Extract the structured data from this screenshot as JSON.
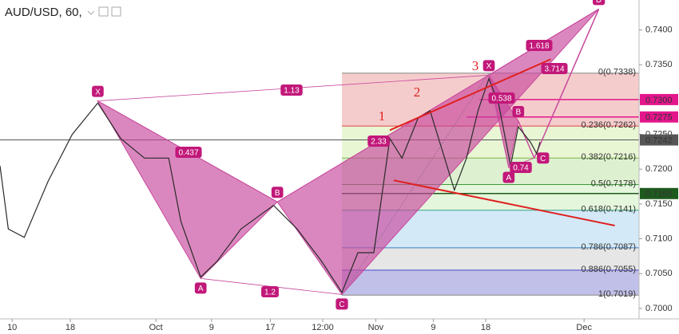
{
  "header": {
    "symbol": "AUD/USD, 60,"
  },
  "chart_data": {
    "type": "line",
    "color": "#2a2a2a",
    "x": [
      0,
      1.3,
      3.8,
      7.5,
      11.3,
      15.3,
      18.9,
      22.6,
      26.4,
      28.3,
      31.4,
      34,
      37.7,
      42.8,
      46.5,
      50.3,
      53.5,
      56,
      58.5,
      61,
      62.9,
      65.4,
      67.3,
      69.2,
      71.1,
      73,
      74.8,
      76.5,
      78,
      79.9,
      81.1,
      83,
      84,
      84.5
    ],
    "values": [
      0.7205,
      0.7114,
      0.7102,
      0.7182,
      0.725,
      0.7295,
      0.7244,
      0.7216,
      0.7216,
      0.7125,
      0.7045,
      0.7068,
      0.7114,
      0.7148,
      0.7114,
      0.7068,
      0.7023,
      0.708,
      0.708,
      0.7244,
      0.7216,
      0.7273,
      0.7284,
      0.7227,
      0.717,
      0.7216,
      0.7284,
      0.733,
      0.7295,
      0.7205,
      0.7261,
      0.7239,
      0.7222,
      0.7239
    ],
    "xlim": [
      0,
      100
    ],
    "xticks": [
      {
        "value": 1.9,
        "label": "10"
      },
      {
        "value": 11,
        "label": "18"
      },
      {
        "value": 24.4,
        "label": "Oct"
      },
      {
        "value": 33.1,
        "label": "9"
      },
      {
        "value": 42.3,
        "label": "17"
      },
      {
        "value": 50.5,
        "label": "12:00"
      },
      {
        "value": 58.8,
        "label": "Nov"
      },
      {
        "value": 67.8,
        "label": "9"
      },
      {
        "value": 76,
        "label": "18"
      },
      {
        "value": 91.4,
        "label": "Dec"
      }
    ],
    "ylim": [
      0.6985,
      0.7443
    ],
    "yticks": [
      {
        "value": 0.74,
        "label": "0.7400"
      },
      {
        "value": 0.735,
        "label": "0.7350"
      },
      {
        "value": 0.73,
        "label": "0.7300"
      },
      {
        "value": 0.725,
        "label": "0.7250"
      },
      {
        "value": 0.72,
        "label": "0.7200"
      },
      {
        "value": 0.715,
        "label": "0.7150"
      },
      {
        "value": 0.71,
        "label": "0.7100"
      },
      {
        "value": 0.705,
        "label": "0.7050"
      },
      {
        "value": 0.7,
        "label": "0.7000"
      }
    ],
    "price_tags": [
      {
        "value": 0.73,
        "label": "0.7300",
        "color": "#e3168c",
        "from": 75
      },
      {
        "value": 0.7275,
        "label": "0.7275",
        "color": "#e3168c",
        "from": 73
      },
      {
        "value": 0.7242,
        "label": "0.7242",
        "color": "#555555",
        "from": 0
      },
      {
        "value": 0.7165,
        "label": "0.7165",
        "color": "#1e5a1e",
        "from": 53.5
      }
    ],
    "fib_start": 53.5,
    "fib_levels": [
      {
        "value": 0.7338,
        "label": "0(0.7338)",
        "color": "#888888",
        "fill": "rgba(225,110,110,0.35)"
      },
      {
        "value": 0.7262,
        "label": "0.236(0.7262)",
        "color": "#e04040",
        "fill": "rgba(205,235,160,0.45)"
      },
      {
        "value": 0.7216,
        "label": "0.382(0.7216)",
        "color": "#7ab648",
        "fill": "rgba(180,225,150,0.45)"
      },
      {
        "value": 0.7178,
        "label": "0.5(0.7178)",
        "color": "#3c9a3c",
        "fill": "rgba(195,235,175,0.45)"
      },
      {
        "value": 0.7141,
        "label": "0.618(0.7141)",
        "color": "#3aa38c",
        "fill": "rgba(175,215,240,0.55)"
      },
      {
        "value": 0.7087,
        "label": "0.786(0.7087)",
        "color": "#3d7fc0",
        "fill": "rgba(210,210,210,0.55)"
      },
      {
        "value": 0.7055,
        "label": "0.886(0.7055)",
        "color": "#4a4ac8",
        "fill": "rgba(140,140,215,0.55)"
      },
      {
        "value": 0.7019,
        "label": "1(0.7019)",
        "color": "#888888"
      }
    ],
    "patterns": [
      {
        "color": "#c8479c",
        "points": [
          {
            "label": "X",
            "x": 15.3,
            "y": 0.7298
          },
          {
            "label": "A",
            "x": 31.4,
            "y": 0.7043
          },
          {
            "label": "B",
            "x": 43.4,
            "y": 0.7153
          },
          {
            "label": "C",
            "x": 53.5,
            "y": 0.702
          },
          {
            "label": "D",
            "x": 93.7,
            "y": 0.743
          }
        ]
      },
      {
        "color": "#c8479c",
        "points": [
          {
            "label": "X",
            "x": 76.5,
            "y": 0.7335
          },
          {
            "label": "A",
            "x": 79.6,
            "y": 0.7202
          },
          {
            "label": "B",
            "x": 81.1,
            "y": 0.7269
          },
          {
            "label": "C",
            "x": 83.6,
            "y": 0.7216
          }
        ]
      }
    ],
    "ratios": [
      0.437,
      1.2,
      1.13,
      1.618,
      3.714,
      2.33,
      0.538,
      0.74
    ],
    "trend_lines": [
      {
        "color": "#e02020",
        "x": [
          61,
          86.2
        ],
        "y": [
          0.7256,
          0.7358
        ]
      },
      {
        "color": "#e02020",
        "x": [
          61.6,
          96.2
        ],
        "y": [
          0.7184,
          0.7119
        ]
      }
    ],
    "waves": [
      "1",
      "2",
      "3"
    ]
  }
}
